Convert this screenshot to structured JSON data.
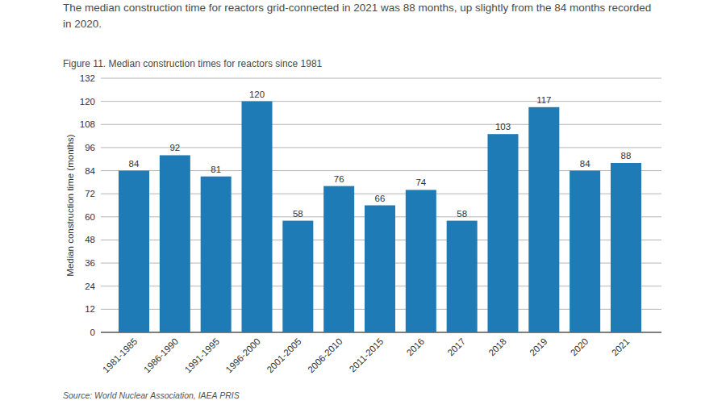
{
  "chart_data": {
    "type": "bar",
    "subtitle": "The median construction time for reactors grid-connected in 2021 was 88 months, up slightly from the 84 months recorded in 2020.",
    "title": "Figure 11. Median construction times for reactors since 1981",
    "y_label": "Median construction time (months)",
    "source": "Source: World Nuclear Association, IAEA PRIS",
    "categories": [
      "1981-1985",
      "1986-1990",
      "1991-1995",
      "1996-2000",
      "2001-2005",
      "2006-2010",
      "2011-2015",
      "2016",
      "2017",
      "2018",
      "2019",
      "2020",
      "2021"
    ],
    "values": [
      84,
      92,
      81,
      120,
      58,
      76,
      66,
      74,
      58,
      103,
      117,
      84,
      88
    ],
    "color": "#1f7bb6",
    "ylim": [
      0,
      132
    ],
    "yticks": [
      0,
      12,
      24,
      36,
      48,
      60,
      72,
      84,
      96,
      108,
      120,
      132
    ],
    "grid": true,
    "data_labels": true
  }
}
